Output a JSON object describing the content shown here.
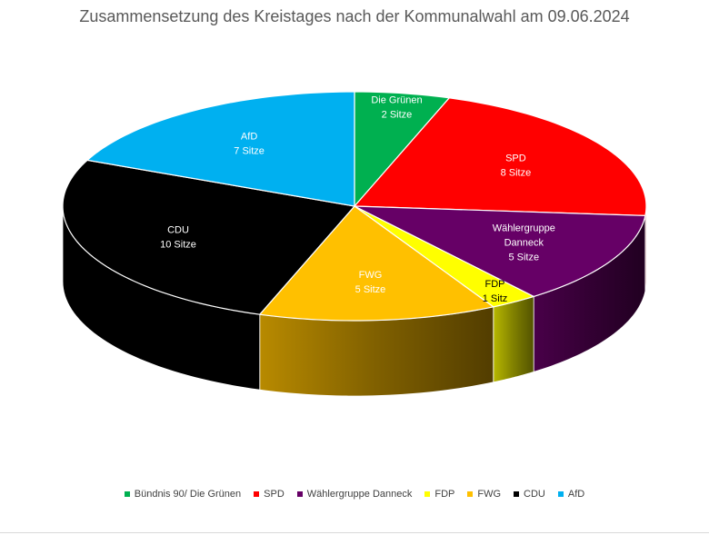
{
  "chart_data": {
    "type": "pie",
    "title": "Zusammensetzung des Kreistages nach der Kommunalwahl am 09.06.2024",
    "unit": "Sitze",
    "legend_position": "bottom",
    "three_d": true,
    "slices": [
      {
        "name": "Bündnis 90/ Die Grünen",
        "label_lines": [
          "Die Grünen",
          "2 Sitze"
        ],
        "value": 2,
        "color": "#00B050",
        "label_color": "#ffffff"
      },
      {
        "name": "SPD",
        "label_lines": [
          "SPD",
          "8 Sitze"
        ],
        "value": 8,
        "color": "#FF0000",
        "label_color": "#ffffff"
      },
      {
        "name": "Wählergruppe Danneck",
        "label_lines": [
          "Wählergruppe",
          "Danneck",
          "5 Sitze"
        ],
        "value": 5,
        "color": "#660066",
        "label_color": "#ffffff"
      },
      {
        "name": "FDP",
        "label_lines": [
          "FDP",
          "1 Sitz"
        ],
        "value": 1,
        "color": "#FFFF00",
        "label_color": "#000000"
      },
      {
        "name": "FWG",
        "label_lines": [
          "FWG",
          "5 Sitze"
        ],
        "value": 5,
        "color": "#FFC000",
        "label_color": "#ffffff"
      },
      {
        "name": "CDU",
        "label_lines": [
          "CDU",
          "10 Sitze"
        ],
        "value": 10,
        "color": "#000000",
        "label_color": "#ffffff"
      },
      {
        "name": "AfD",
        "label_lines": [
          "AfD",
          "7 Sitze"
        ],
        "value": 7,
        "color": "#00B0F0",
        "label_color": "#ffffff"
      }
    ]
  }
}
